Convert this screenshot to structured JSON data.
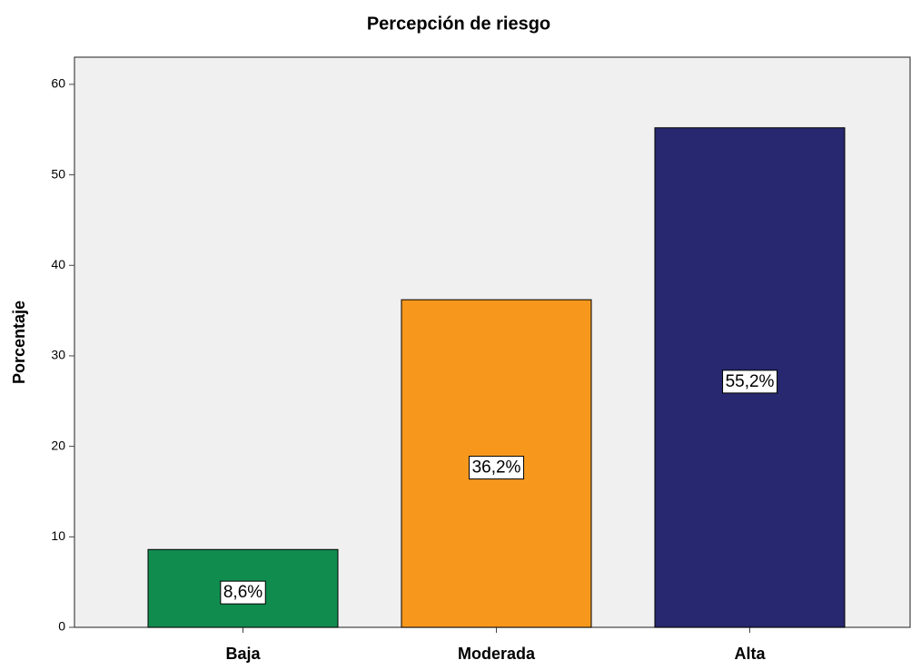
{
  "chart_data": {
    "type": "bar",
    "title": "Percepción de riesgo",
    "y_label": "Porcentaje",
    "categories": [
      "Baja",
      "Moderada",
      "Alta"
    ],
    "values": [
      8.6,
      36.2,
      55.2
    ],
    "value_labels": [
      "8,6%",
      "36,2%",
      "55,2%"
    ],
    "colors": [
      "#118c4f",
      "#f7981d",
      "#27286f"
    ],
    "ylim": [
      0,
      63
    ],
    "yticks": [
      0,
      10,
      20,
      30,
      40,
      50,
      60
    ],
    "grid": false
  }
}
